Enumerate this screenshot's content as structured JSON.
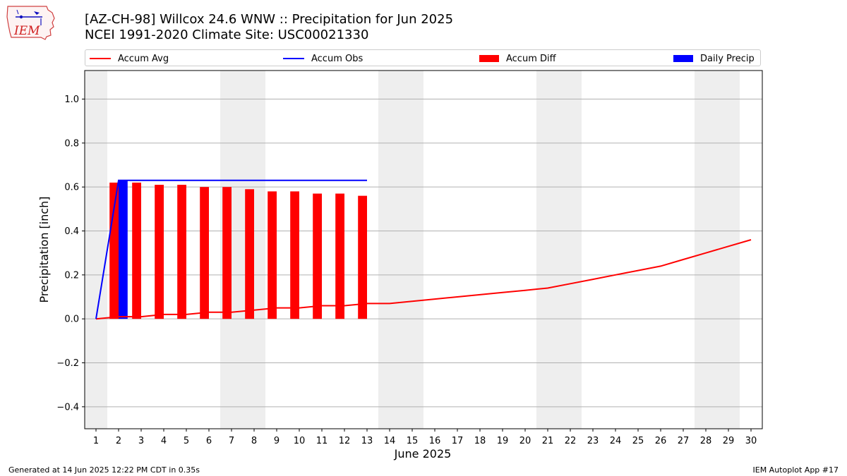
{
  "title_line1": "[AZ-CH-98] Willcox 24.6 WNW :: Precipitation for Jun 2025",
  "title_line2": "NCEI 1991-2020 Climate Site: USC00021330",
  "logo_text": "IEM",
  "footer_left": "Generated at 14 Jun 2025 12:22 PM CDT in 0.35s",
  "footer_right": "IEM Autoplot App #17",
  "colors": {
    "avg": "#ff0000",
    "obs": "#0000ff",
    "diff": "#ff0000",
    "daily": "#0000ff",
    "weekend": "#eeeeee",
    "grid": "#b0b0b0"
  },
  "legend": [
    {
      "label": "Accum Avg",
      "kind": "line",
      "color": "#ff0000"
    },
    {
      "label": "Accum Obs",
      "kind": "line",
      "color": "#0000ff"
    },
    {
      "label": "Accum Diff",
      "kind": "box",
      "color": "#ff0000"
    },
    {
      "label": "Daily Precip",
      "kind": "box",
      "color": "#0000ff"
    }
  ],
  "chart_data": {
    "type": "bar",
    "title": "[AZ-CH-98] Willcox 24.6 WNW :: Precipitation for Jun 2025",
    "subtitle": "NCEI 1991-2020 Climate Site: USC00021330",
    "xlabel": "June 2025",
    "ylabel": "Precipitation [inch]",
    "x": [
      1,
      2,
      3,
      4,
      5,
      6,
      7,
      8,
      9,
      10,
      11,
      12,
      13,
      14,
      15,
      16,
      17,
      18,
      19,
      20,
      21,
      22,
      23,
      24,
      25,
      26,
      27,
      28,
      29,
      30
    ],
    "xlim": [
      0.5,
      30.5
    ],
    "ylim": [
      -0.5,
      1.13
    ],
    "yticks": [
      -0.4,
      -0.2,
      0.0,
      0.2,
      0.4,
      0.6,
      0.8,
      1.0
    ],
    "grid": "horizontal",
    "legend_position": "top",
    "weekend_days": [
      1,
      7,
      8,
      14,
      15,
      21,
      22,
      28,
      29
    ],
    "series": [
      {
        "name": "Accum Avg",
        "type": "line",
        "x": [
          1,
          2,
          3,
          4,
          5,
          6,
          7,
          8,
          9,
          10,
          11,
          12,
          13,
          14,
          15,
          16,
          17,
          18,
          19,
          20,
          21,
          22,
          23,
          24,
          25,
          26,
          27,
          28,
          29,
          30
        ],
        "values": [
          0.0,
          0.01,
          0.01,
          0.02,
          0.02,
          0.03,
          0.03,
          0.04,
          0.05,
          0.05,
          0.06,
          0.06,
          0.07,
          0.07,
          0.08,
          0.09,
          0.1,
          0.11,
          0.12,
          0.13,
          0.14,
          0.16,
          0.18,
          0.2,
          0.22,
          0.24,
          0.27,
          0.3,
          0.33,
          0.36
        ]
      },
      {
        "name": "Accum Obs",
        "type": "line",
        "x": [
          1,
          2,
          3,
          4,
          5,
          6,
          7,
          8,
          9,
          10,
          11,
          12,
          13
        ],
        "values": [
          0.0,
          0.63,
          0.63,
          0.63,
          0.63,
          0.63,
          0.63,
          0.63,
          0.63,
          0.63,
          0.63,
          0.63,
          0.63
        ]
      },
      {
        "name": "Accum Diff",
        "type": "bar",
        "x": [
          2,
          3,
          4,
          5,
          6,
          7,
          8,
          9,
          10,
          11,
          12,
          13
        ],
        "values": [
          0.62,
          0.62,
          0.61,
          0.61,
          0.6,
          0.6,
          0.59,
          0.58,
          0.58,
          0.57,
          0.57,
          0.56
        ]
      },
      {
        "name": "Daily Precip",
        "type": "bar",
        "x": [
          2
        ],
        "values": [
          0.63
        ]
      }
    ]
  }
}
